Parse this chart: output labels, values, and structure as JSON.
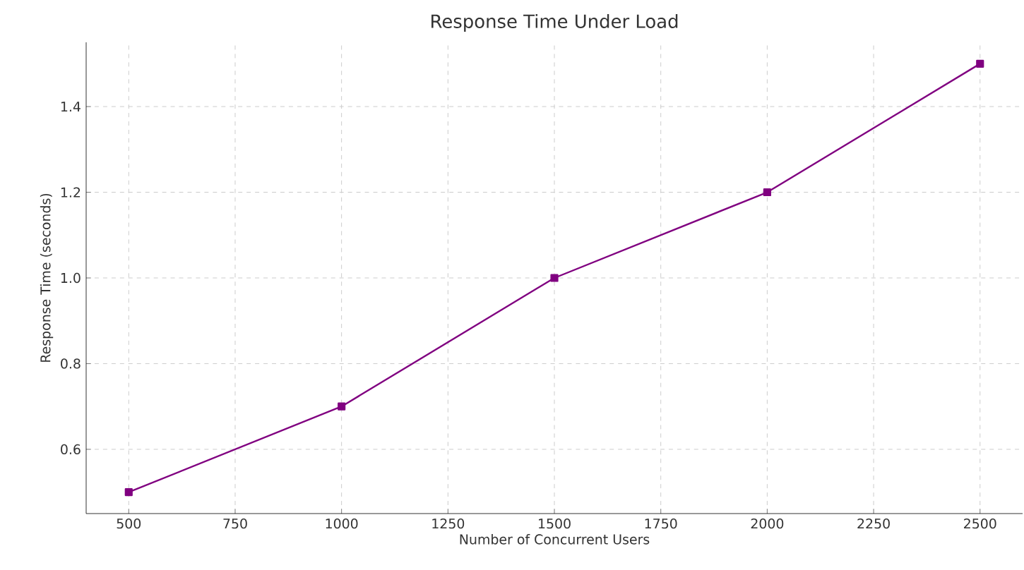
{
  "chart_data": {
    "type": "line",
    "title": "Response Time Under Load",
    "xlabel": "Number of Concurrent Users",
    "ylabel": "Response Time (seconds)",
    "x": [
      500,
      1000,
      1500,
      2000,
      2500
    ],
    "series": [
      {
        "color": "#800080",
        "values": [
          0.5,
          0.7,
          1.0,
          1.2,
          1.5
        ]
      }
    ],
    "xlim": [
      400,
      2600
    ],
    "ylim": [
      0.45,
      1.55
    ],
    "xticks": [
      500,
      750,
      1000,
      1250,
      1500,
      1750,
      2000,
      2250,
      2500
    ],
    "yticks": [
      0.6,
      0.8,
      {
        "value": 1.0,
        "label": "1.0"
      },
      1.2,
      1.4
    ],
    "grid": true,
    "marker": "square",
    "line_style": "solid"
  }
}
